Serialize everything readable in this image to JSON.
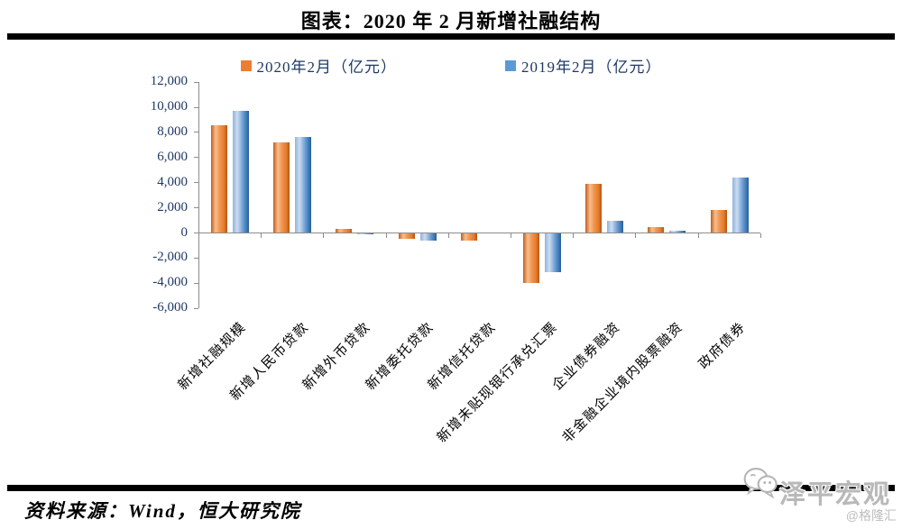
{
  "title": "图表：2020 年 2 月新增社融结构",
  "chart_data": {
    "type": "bar",
    "categories": [
      "新增社融规模",
      "新增人民币贷款",
      "新增外币贷款",
      "新增委托贷款",
      "新增信托贷款",
      "新增未贴现银行承兑汇票",
      "企业债券融资",
      "非金融企业境内股票融资",
      "政府债券"
    ],
    "series": [
      {
        "name": "2020年2月（亿元）",
        "color": "#ED7D31",
        "values": [
          8550,
          7200,
          300,
          -400,
          -550,
          -3950,
          3900,
          450,
          1850
        ]
      },
      {
        "name": "2019年2月（亿元）",
        "color": "#5B9BD5",
        "values": [
          9700,
          7650,
          -100,
          -550,
          0,
          -3100,
          950,
          150,
          4400
        ]
      }
    ],
    "ylim": [
      -6000,
      12000
    ],
    "ytick_step": 2000,
    "yticks": [
      "-6,000",
      "-4,000",
      "-2,000",
      "0",
      "2,000",
      "4,000",
      "6,000",
      "8,000",
      "10,000",
      "12,000"
    ],
    "grid": "zero baseline only, no horizontal gridlines",
    "legend_position": "top"
  },
  "source": "资料来源：Wind，恒大研究院",
  "watermark": {
    "brand": "泽平宏观",
    "handle": "@格隆汇"
  },
  "colors": {
    "axis": "#8c8c8c",
    "tick_text": "#1F3864",
    "rule": "#000000",
    "watermark_text": "#b9b9b9"
  }
}
